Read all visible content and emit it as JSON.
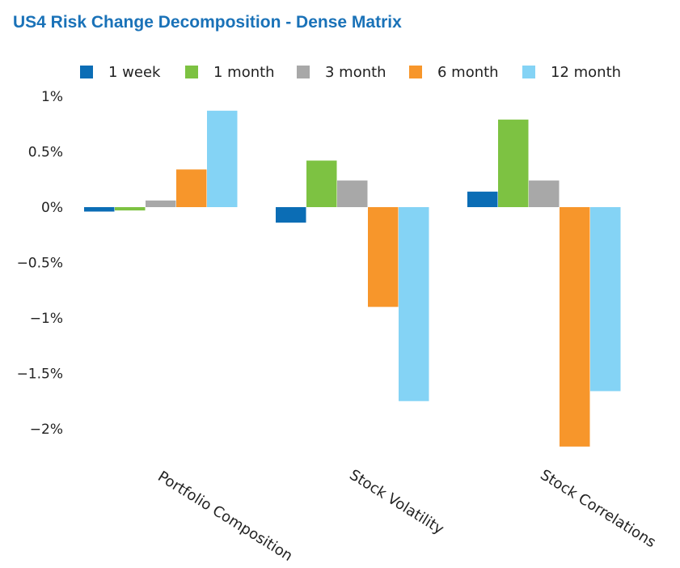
{
  "chart_data": {
    "type": "bar",
    "title": "US4 Risk Change Decomposition - Dense Matrix",
    "categories": [
      "Portfolio Composition",
      "Stock Volatility",
      "Stock Correlations"
    ],
    "series": [
      {
        "name": "1 week",
        "color": "#0b6db5",
        "values": [
          -0.04,
          -0.14,
          0.14
        ]
      },
      {
        "name": "1 month",
        "color": "#7dc242",
        "values": [
          -0.03,
          0.42,
          0.79
        ]
      },
      {
        "name": "3 month",
        "color": "#a8a8a8",
        "values": [
          0.06,
          0.24,
          0.24
        ]
      },
      {
        "name": "6 month",
        "color": "#f7962b",
        "values": [
          0.34,
          -0.9,
          -2.16
        ]
      },
      {
        "name": "12 month",
        "color": "#84d3f5",
        "values": [
          0.87,
          -1.75,
          -1.66
        ]
      }
    ],
    "yticks": [
      "1%",
      "0.5%",
      "0%",
      "−0.5%",
      "−1%",
      "−1.5%",
      "−2%"
    ],
    "ytick_values": [
      1,
      0.5,
      0,
      -0.5,
      -1,
      -1.5,
      -2
    ],
    "ylim": [
      -2.2,
      1
    ],
    "xlabel": "",
    "ylabel": "",
    "legend_position": "top",
    "grid": false
  }
}
